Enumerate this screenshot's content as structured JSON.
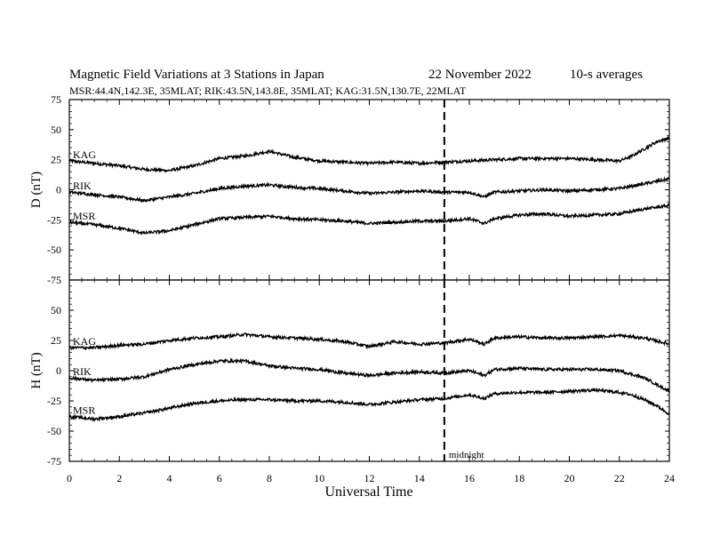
{
  "header": {
    "title": "Magnetic Field Variations at 3 Stations in Japan",
    "date": "22 November 2022",
    "averaging": "10-s averages",
    "stations_line": "MSR:44.4N,142.3E, 35MLAT;  RIK:43.5N,143.8E, 35MLAT;  KAG:31.5N,130.7E, 22MLAT"
  },
  "chart_data": [
    {
      "type": "line",
      "panel": "D",
      "ylabel": "D (nT)",
      "xlabel": "Universal Time",
      "xlim": [
        0,
        24
      ],
      "ylim": [
        -75,
        75
      ],
      "xticks": [
        0,
        2,
        4,
        6,
        8,
        10,
        12,
        14,
        16,
        18,
        20,
        22,
        24
      ],
      "yticks": [
        75,
        50,
        25,
        0,
        -25,
        -50,
        -75
      ],
      "midnight_ut": 15,
      "midnight_label": "",
      "series": [
        {
          "name": "KAG",
          "x": [
            0,
            1,
            2,
            3,
            4,
            5,
            6,
            7,
            8,
            9,
            10,
            11,
            12,
            13,
            14,
            15,
            16,
            17,
            18,
            19,
            20,
            21,
            22,
            22.5,
            23,
            23.5,
            24
          ],
          "values": [
            24,
            22,
            20,
            17,
            16,
            20,
            26,
            28,
            32,
            27,
            24,
            23,
            22,
            23,
            22,
            23,
            24,
            25,
            26,
            26,
            26,
            25,
            24,
            28,
            34,
            40,
            43
          ]
        },
        {
          "name": "RIK",
          "x": [
            0,
            1,
            2,
            3,
            4,
            5,
            6,
            7,
            8,
            9,
            10,
            11,
            12,
            13,
            14,
            15,
            16,
            16.6,
            17,
            18,
            19,
            20,
            21,
            22,
            23,
            24
          ],
          "values": [
            -2,
            -4,
            -6,
            -9,
            -6,
            -3,
            1,
            3,
            4,
            2,
            1,
            -1,
            -3,
            -2,
            -1,
            -2,
            -2,
            -6,
            -2,
            -1,
            0,
            -1,
            0,
            1,
            5,
            9
          ]
        },
        {
          "name": "MSR",
          "x": [
            0,
            1,
            2,
            3,
            4,
            5,
            6,
            7,
            8,
            9,
            10,
            11,
            12,
            13,
            14,
            15,
            16,
            16.6,
            17,
            18,
            19,
            20,
            21,
            22,
            23,
            24
          ],
          "values": [
            -27,
            -29,
            -32,
            -36,
            -34,
            -29,
            -24,
            -23,
            -22,
            -24,
            -25,
            -26,
            -28,
            -27,
            -26,
            -26,
            -24,
            -28,
            -24,
            -21,
            -20,
            -22,
            -21,
            -20,
            -16,
            -13
          ]
        }
      ]
    },
    {
      "type": "line",
      "panel": "H",
      "ylabel": "H (nT)",
      "xlabel": "Universal Time",
      "xlim": [
        0,
        24
      ],
      "ylim": [
        -75,
        75
      ],
      "xticks": [
        0,
        2,
        4,
        6,
        8,
        10,
        12,
        14,
        16,
        18,
        20,
        22,
        24
      ],
      "yticks": [
        75,
        50,
        25,
        0,
        -25,
        -50,
        -75
      ],
      "midnight_ut": 15,
      "midnight_label": "midnight",
      "series": [
        {
          "name": "KAG",
          "x": [
            0,
            1,
            2,
            3,
            4,
            5,
            6,
            7,
            8,
            9,
            10,
            11,
            12,
            13,
            14,
            15,
            16,
            16.6,
            17,
            18,
            19,
            20,
            21,
            22,
            23,
            24
          ],
          "values": [
            19,
            19,
            21,
            22,
            25,
            27,
            28,
            30,
            28,
            27,
            26,
            24,
            20,
            24,
            22,
            23,
            26,
            22,
            27,
            28,
            27,
            27,
            28,
            29,
            27,
            22
          ]
        },
        {
          "name": "RIK",
          "x": [
            0,
            1,
            2,
            3,
            4,
            5,
            6,
            7,
            8,
            9,
            10,
            11,
            12,
            13,
            14,
            15,
            16,
            16.6,
            17,
            18,
            19,
            20,
            21,
            22,
            23,
            24
          ],
          "values": [
            -6,
            -8,
            -7,
            -5,
            1,
            5,
            8,
            8,
            4,
            2,
            1,
            -2,
            -4,
            -2,
            -1,
            -2,
            0,
            -4,
            1,
            2,
            1,
            1,
            1,
            0,
            -6,
            -17
          ]
        },
        {
          "name": "MSR",
          "x": [
            0,
            1,
            2,
            3,
            4,
            5,
            6,
            7,
            8,
            9,
            10,
            11,
            12,
            13,
            14,
            15,
            16,
            16.6,
            17,
            18,
            19,
            20,
            21,
            22,
            22.5,
            23,
            23.5,
            24
          ],
          "values": [
            -38,
            -40,
            -38,
            -35,
            -31,
            -27,
            -25,
            -24,
            -24,
            -25,
            -25,
            -26,
            -28,
            -26,
            -24,
            -23,
            -20,
            -23,
            -19,
            -18,
            -18,
            -17,
            -16,
            -18,
            -20,
            -24,
            -29,
            -36
          ]
        }
      ]
    }
  ]
}
